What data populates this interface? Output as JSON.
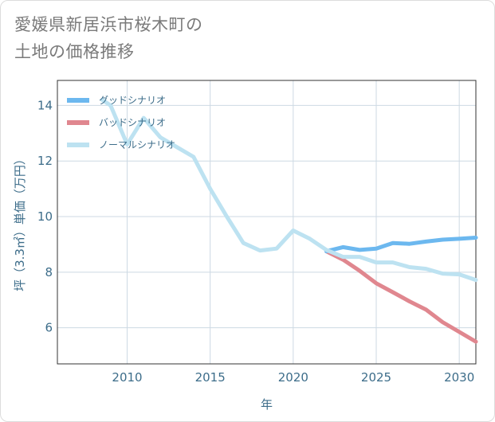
{
  "title_line1": "愛媛県新居浜市桜木町の",
  "title_line2": "土地の価格推移",
  "chart_data": {
    "type": "line",
    "xlabel": "年",
    "ylabel": "坪（3.3㎡）単価（万円）",
    "xlim": [
      2005.8,
      2031
    ],
    "ylim": [
      4.7,
      14.9
    ],
    "x_ticks": [
      2010,
      2015,
      2020,
      2025,
      2030
    ],
    "y_ticks": [
      6,
      8,
      10,
      12,
      14
    ],
    "grid": true,
    "legend_position": "top-left",
    "series": [
      {
        "name": "グッドシナリオ",
        "color": "#6cb8ef",
        "x": [
          2022,
          2023,
          2024,
          2025,
          2026,
          2027,
          2028,
          2029,
          2030,
          2031
        ],
        "y": [
          8.75,
          8.9,
          8.8,
          8.85,
          9.05,
          9.02,
          9.1,
          9.17,
          9.2,
          9.24
        ]
      },
      {
        "name": "バッドシナリオ",
        "color": "#e0878f",
        "x": [
          2022,
          2023,
          2024,
          2025,
          2026,
          2027,
          2028,
          2029,
          2030,
          2031
        ],
        "y": [
          8.75,
          8.45,
          8.05,
          7.6,
          7.28,
          6.95,
          6.65,
          6.2,
          5.85,
          5.5
        ]
      },
      {
        "name": "ノーマルシナリオ",
        "color": "#bde2f1",
        "x": [
          2008.5,
          2009,
          2010,
          2011,
          2012,
          2013,
          2014,
          2015,
          2016,
          2017,
          2018,
          2019,
          2020,
          2021,
          2022,
          2023,
          2024,
          2025,
          2026,
          2027,
          2028,
          2029,
          2030,
          2031
        ],
        "y": [
          14.2,
          14.0,
          12.6,
          13.55,
          12.85,
          12.5,
          12.15,
          11.0,
          10.0,
          9.05,
          8.78,
          8.85,
          9.5,
          9.2,
          8.8,
          8.55,
          8.55,
          8.35,
          8.35,
          8.18,
          8.12,
          7.95,
          7.92,
          7.72
        ]
      }
    ]
  }
}
